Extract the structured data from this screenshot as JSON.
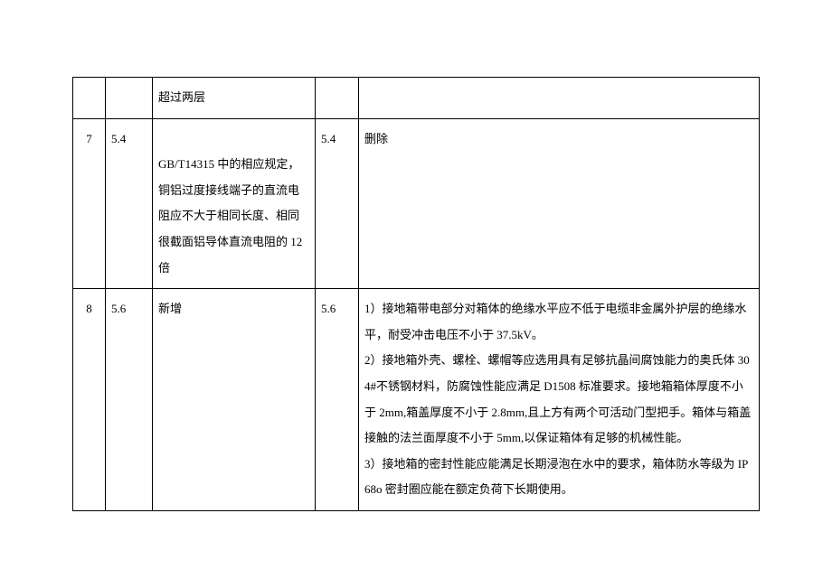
{
  "table": {
    "background_color": "#ffffff",
    "border_color": "#000000",
    "font_family": "SimSun",
    "font_size_pt": 10,
    "line_height": 2.2,
    "rows": [
      {
        "idx": "",
        "ref": "",
        "orig": "超过两层",
        "ref2": "",
        "new_text": ""
      },
      {
        "idx": "7",
        "ref": "5.4",
        "orig": "\nGB/T14315 中的相应规定，铜铝过度接线端子的直流电阻应不大于相同长度、相同很截面铝导体直流电阻的 12 倍",
        "ref2": "5.4",
        "new_text": "删除"
      },
      {
        "idx": "8",
        "ref": "5.6",
        "orig": "新增",
        "ref2": "5.6",
        "new_text": "1）接地箱带电部分对箱体的绝缘水平应不低于电缆非金属外护层的绝缘水平，耐受冲击电压不小于 37.5kV。\n2）接地箱外壳、螺栓、螺帽等应选用具有足够抗晶间腐蚀能力的奥氏体 304#不锈钢材料，防腐蚀性能应满足 D1508 标准要求。接地箱箱体厚度不小于 2mm,箱盖厚度不小于 2.8mm,且上方有两个可活动门型把手。箱体与箱盖接触的法兰面厚度不小于 5mm,以保证箱体有足够的机械性能。\n3）接地箱的密封性能应能满足长期浸泡在水中的要求，箱体防水等级为 IP68o 密封圈应能在额定负荷下长期使用。"
      }
    ]
  }
}
